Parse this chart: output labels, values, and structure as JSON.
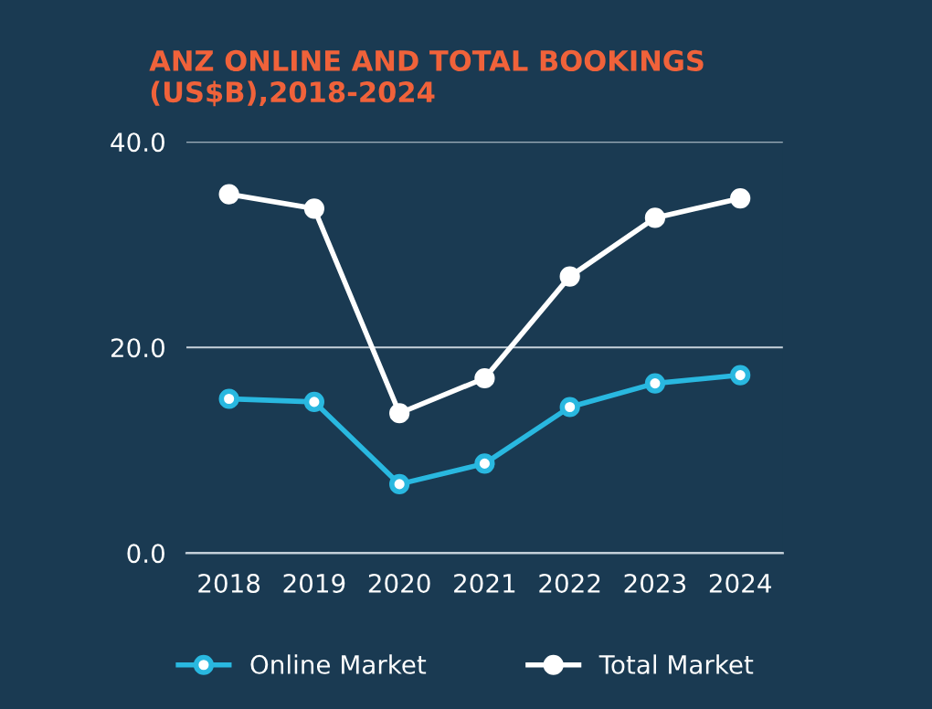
{
  "chart_data": {
    "type": "line",
    "title": "ANZ ONLINE AND TOTAL BOOKINGS (US$B),2018-2024",
    "categories": [
      "2018",
      "2019",
      "2020",
      "2021",
      "2022",
      "2023",
      "2024"
    ],
    "series": [
      {
        "name": "Online Market",
        "color": "#29b8e0",
        "values": [
          15.0,
          14.7,
          6.7,
          8.7,
          14.2,
          16.5,
          17.3
        ]
      },
      {
        "name": "Total Market",
        "color": "#ffffff",
        "values": [
          34.9,
          33.5,
          13.6,
          17.0,
          26.9,
          32.6,
          34.5
        ]
      }
    ],
    "ylim": [
      0,
      40
    ],
    "yticks": [
      {
        "value": 0,
        "label": "0.0"
      },
      {
        "value": 20,
        "label": "20.0"
      },
      {
        "value": 40,
        "label": "40.0"
      }
    ],
    "grid": "y",
    "legend": "bottom",
    "marker": "circle",
    "line_style": "solid"
  }
}
